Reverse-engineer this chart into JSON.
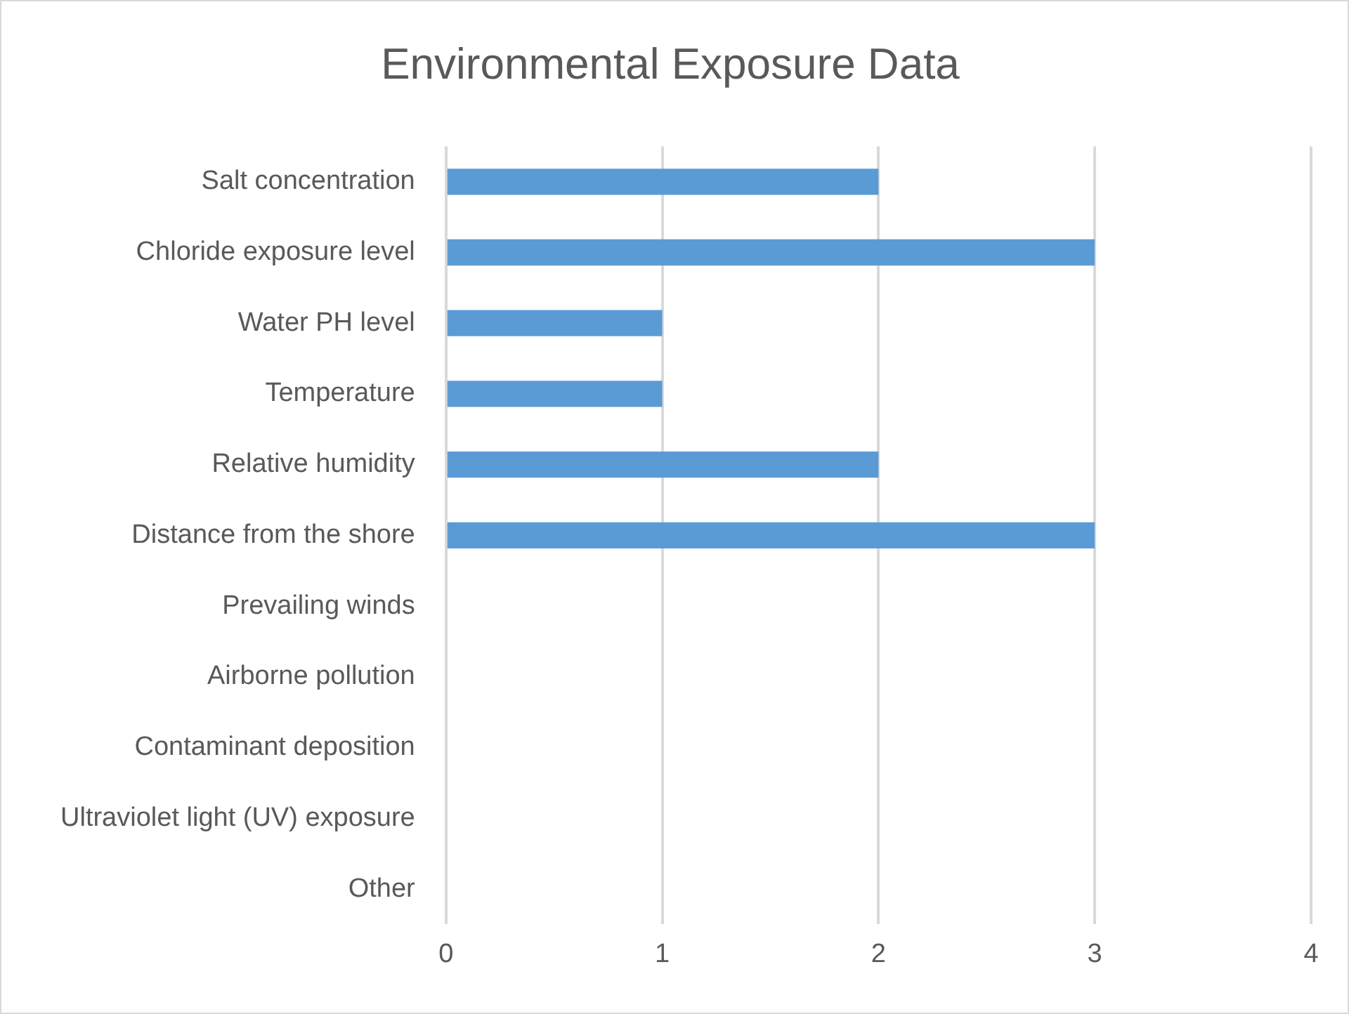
{
  "chart_data": {
    "type": "bar",
    "orientation": "horizontal",
    "title": "Environmental Exposure Data",
    "categories": [
      "Salt concentration",
      "Chloride exposure level",
      "Water PH level",
      "Temperature",
      "Relative humidity",
      "Distance from the shore",
      "Prevailing winds",
      "Airborne pollution",
      "Contaminant deposition",
      "Ultraviolet light (UV) exposure",
      "Other"
    ],
    "values": [
      2,
      3,
      1,
      1,
      2,
      3,
      0,
      0,
      0,
      0,
      0
    ],
    "color": "#5b9bd5",
    "xlim": [
      0,
      4
    ],
    "xticks": [
      0,
      1,
      2,
      3,
      4
    ],
    "grid": "x",
    "legend": false
  }
}
